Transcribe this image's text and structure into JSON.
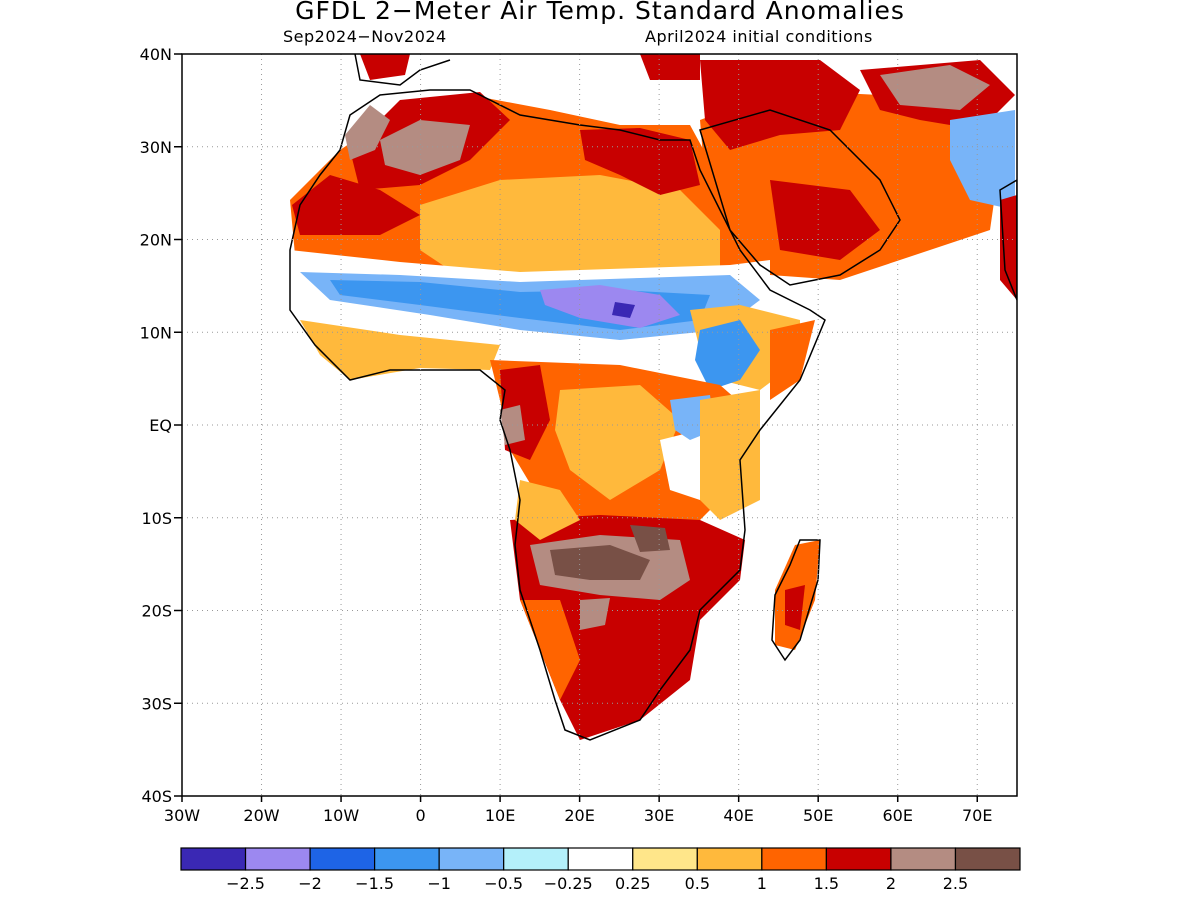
{
  "title": "GFDL 2−Meter Air Temp. Standard Anomalies",
  "subtitle_left": "Sep2024−Nov2024",
  "subtitle_right": "April2024 initial conditions",
  "map": {
    "lon_range": [
      -30,
      75
    ],
    "lat_range": [
      -40,
      40
    ],
    "gridlines": "dotted",
    "lat_ticks": [
      {
        "value": 40,
        "label": "40N"
      },
      {
        "value": 30,
        "label": "30N"
      },
      {
        "value": 20,
        "label": "20N"
      },
      {
        "value": 10,
        "label": "10N"
      },
      {
        "value": 0,
        "label": "EQ"
      },
      {
        "value": -10,
        "label": "10S"
      },
      {
        "value": -20,
        "label": "20S"
      },
      {
        "value": -30,
        "label": "30S"
      },
      {
        "value": -40,
        "label": "40S"
      }
    ],
    "lon_ticks": [
      {
        "value": -30,
        "label": "30W"
      },
      {
        "value": -20,
        "label": "20W"
      },
      {
        "value": -10,
        "label": "10W"
      },
      {
        "value": 0,
        "label": "0"
      },
      {
        "value": 10,
        "label": "10E"
      },
      {
        "value": 20,
        "label": "20E"
      },
      {
        "value": 30,
        "label": "30E"
      },
      {
        "value": 40,
        "label": "40E"
      },
      {
        "value": 50,
        "label": "50E"
      },
      {
        "value": 60,
        "label": "60E"
      },
      {
        "value": 70,
        "label": "70E"
      }
    ]
  },
  "colorbar": {
    "colors": [
      "#3a28b4",
      "#9c88f0",
      "#1e64e6",
      "#3c96f0",
      "#78b4f8",
      "#b4f0fa",
      "#ffffff",
      "#ffe68a",
      "#ffb93c",
      "#ff6400",
      "#c80000",
      "#b48c82",
      "#785046"
    ],
    "labels": [
      "−2.5",
      "−2",
      "−1.5",
      "−1",
      "−0.5",
      "−0.25",
      "0.25",
      "0.5",
      "1",
      "1.5",
      "2",
      "2.5"
    ]
  }
}
